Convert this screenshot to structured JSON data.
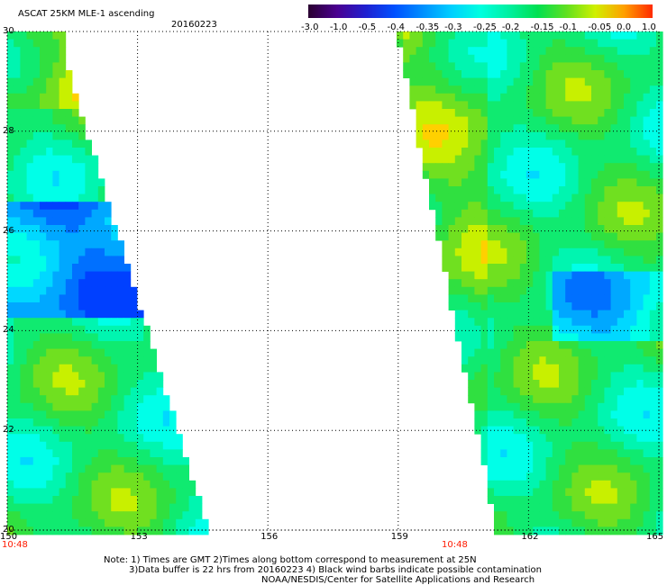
{
  "header": {
    "title": "ASCAT 25KM MLE-1 ascending",
    "date": "20160223"
  },
  "colorbar": {
    "labels": [
      "-3.0",
      "-1.0",
      "-0.5",
      "-0.4",
      "-0.35",
      "-0.3",
      "-0.25",
      "-0.2",
      "-0.15",
      "-0.1",
      "-0.05",
      "0.0",
      "1.0"
    ],
    "colors": [
      "#2a0030",
      "#4a0090",
      "#2020d0",
      "#0050ff",
      "#0090ff",
      "#00d0ff",
      "#00ffe0",
      "#00f0a0",
      "#00e050",
      "#60e020",
      "#d0f000",
      "#ffa000",
      "#ff2a00"
    ]
  },
  "map": {
    "lon_ticks": [
      "150",
      "153",
      "156",
      "159",
      "162",
      "165"
    ],
    "lat_ticks": [
      "30",
      "28",
      "26",
      "24",
      "22",
      "20"
    ],
    "lon_range": [
      150,
      165
    ],
    "lat_range": [
      20,
      30
    ],
    "grid": "dotted",
    "pass_times": [
      "10:48",
      "10:48"
    ],
    "colors": {
      "background": "#ffffff",
      "grid": "#000000",
      "time_label": "#ff1a00"
    }
  },
  "notes": {
    "line1": "Note: 1) Times are GMT 2)Times along bottom correspond to measurement at 25N",
    "line2": "3)Data buffer is 22 hrs from 20160223 4) Black wind barbs indicate possible contamination",
    "line3": "NOAA/NESDIS/Center for Satellite Applications and Research"
  }
}
